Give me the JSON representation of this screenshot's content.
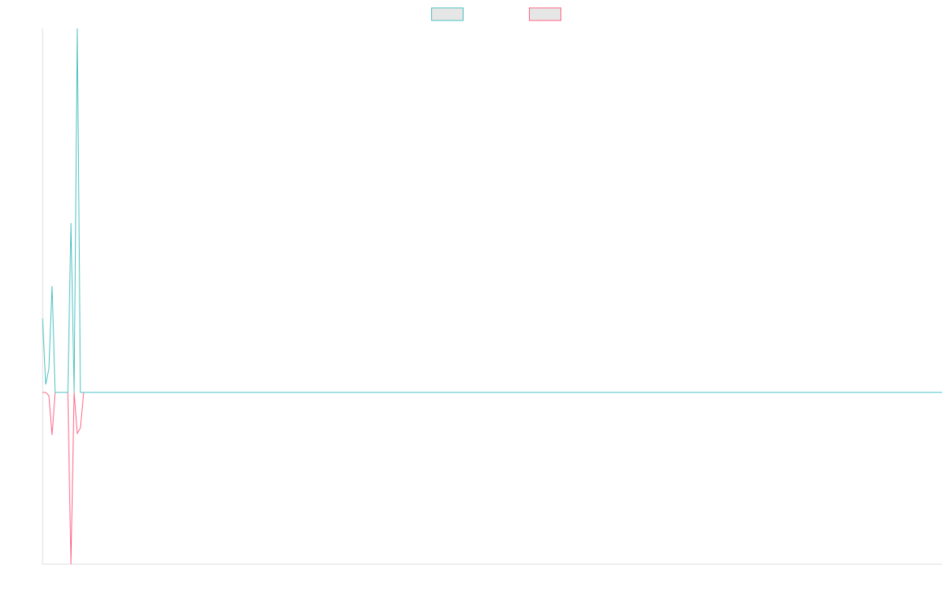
{
  "chart_data": {
    "type": "line",
    "x": [
      0,
      1,
      2,
      3,
      4,
      5,
      6,
      7,
      8,
      9,
      10,
      11,
      12,
      13,
      285
    ],
    "xlim": [
      0,
      285
    ],
    "ylim": [
      -2.18,
      4.62
    ],
    "legend": "top",
    "series": [
      {
        "color": "#4bc0c0",
        "values": [
          0.94,
          0.1,
          0.3,
          1.35,
          0,
          0,
          0,
          0,
          0,
          2.15,
          0,
          4.62,
          0,
          0,
          0
        ]
      },
      {
        "color": "#ff6384",
        "values": [
          0,
          0,
          -0.04,
          -0.54,
          0,
          0,
          0,
          0,
          0,
          -2.18,
          0,
          -0.52,
          -0.45,
          0,
          0
        ]
      }
    ]
  }
}
